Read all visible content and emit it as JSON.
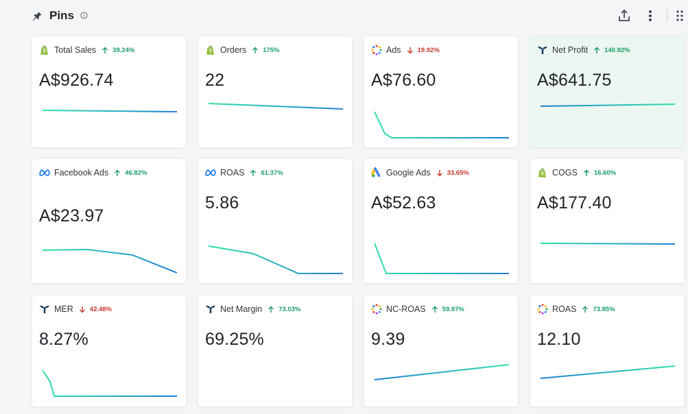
{
  "header": {
    "title": "Pins"
  },
  "colors": {
    "up": "#1a9d6a",
    "down": "#c7372d",
    "spark_start": "#2fe0a8",
    "spark_end": "#1b7fd4",
    "highlight": "#ebf7f0"
  },
  "cards": [
    {
      "label": "Total Sales",
      "change": "39.24%",
      "direction": "up",
      "value": "A$926.74",
      "icon": "shopify-icon",
      "highlight": false
    },
    {
      "label": "Orders",
      "change": "175%",
      "direction": "up",
      "value": "22",
      "icon": "shopify-icon",
      "highlight": false
    },
    {
      "label": "Ads",
      "change": "19.92%",
      "direction": "down",
      "value": "A$76.60",
      "icon": "multi-dot-icon",
      "highlight": false
    },
    {
      "label": "Net Profit",
      "change": "140.92%",
      "direction": "up",
      "value": "A$641.75",
      "icon": "triple-whale-icon",
      "highlight": true
    },
    {
      "label": "Facebook Ads",
      "change": "46.82%",
      "direction": "up",
      "value": "A$23.97",
      "icon": "meta-icon",
      "highlight": false
    },
    {
      "label": "ROAS",
      "change": "61.37%",
      "direction": "up",
      "value": "5.86",
      "icon": "meta-icon",
      "highlight": false
    },
    {
      "label": "Google Ads",
      "change": "33.65%",
      "direction": "down",
      "value": "A$52.63",
      "icon": "google-ads-icon",
      "highlight": false
    },
    {
      "label": "COGS",
      "change": "16.60%",
      "direction": "up",
      "value": "A$177.40",
      "icon": "shopify-icon",
      "highlight": false
    },
    {
      "label": "MER",
      "change": "42.48%",
      "direction": "down",
      "value": "8.27%",
      "icon": "triple-whale-icon",
      "highlight": false
    },
    {
      "label": "Net Margin",
      "change": "73.03%",
      "direction": "up",
      "value": "69.25%",
      "icon": "triple-whale-icon",
      "highlight": false
    },
    {
      "label": "NC-ROAS",
      "change": "59.97%",
      "direction": "up",
      "value": "9.39",
      "icon": "multi-dot-icon",
      "highlight": false
    },
    {
      "label": "ROAS",
      "change": "73.85%",
      "direction": "up",
      "value": "12.10",
      "icon": "multi-dot-icon",
      "highlight": false
    }
  ]
}
